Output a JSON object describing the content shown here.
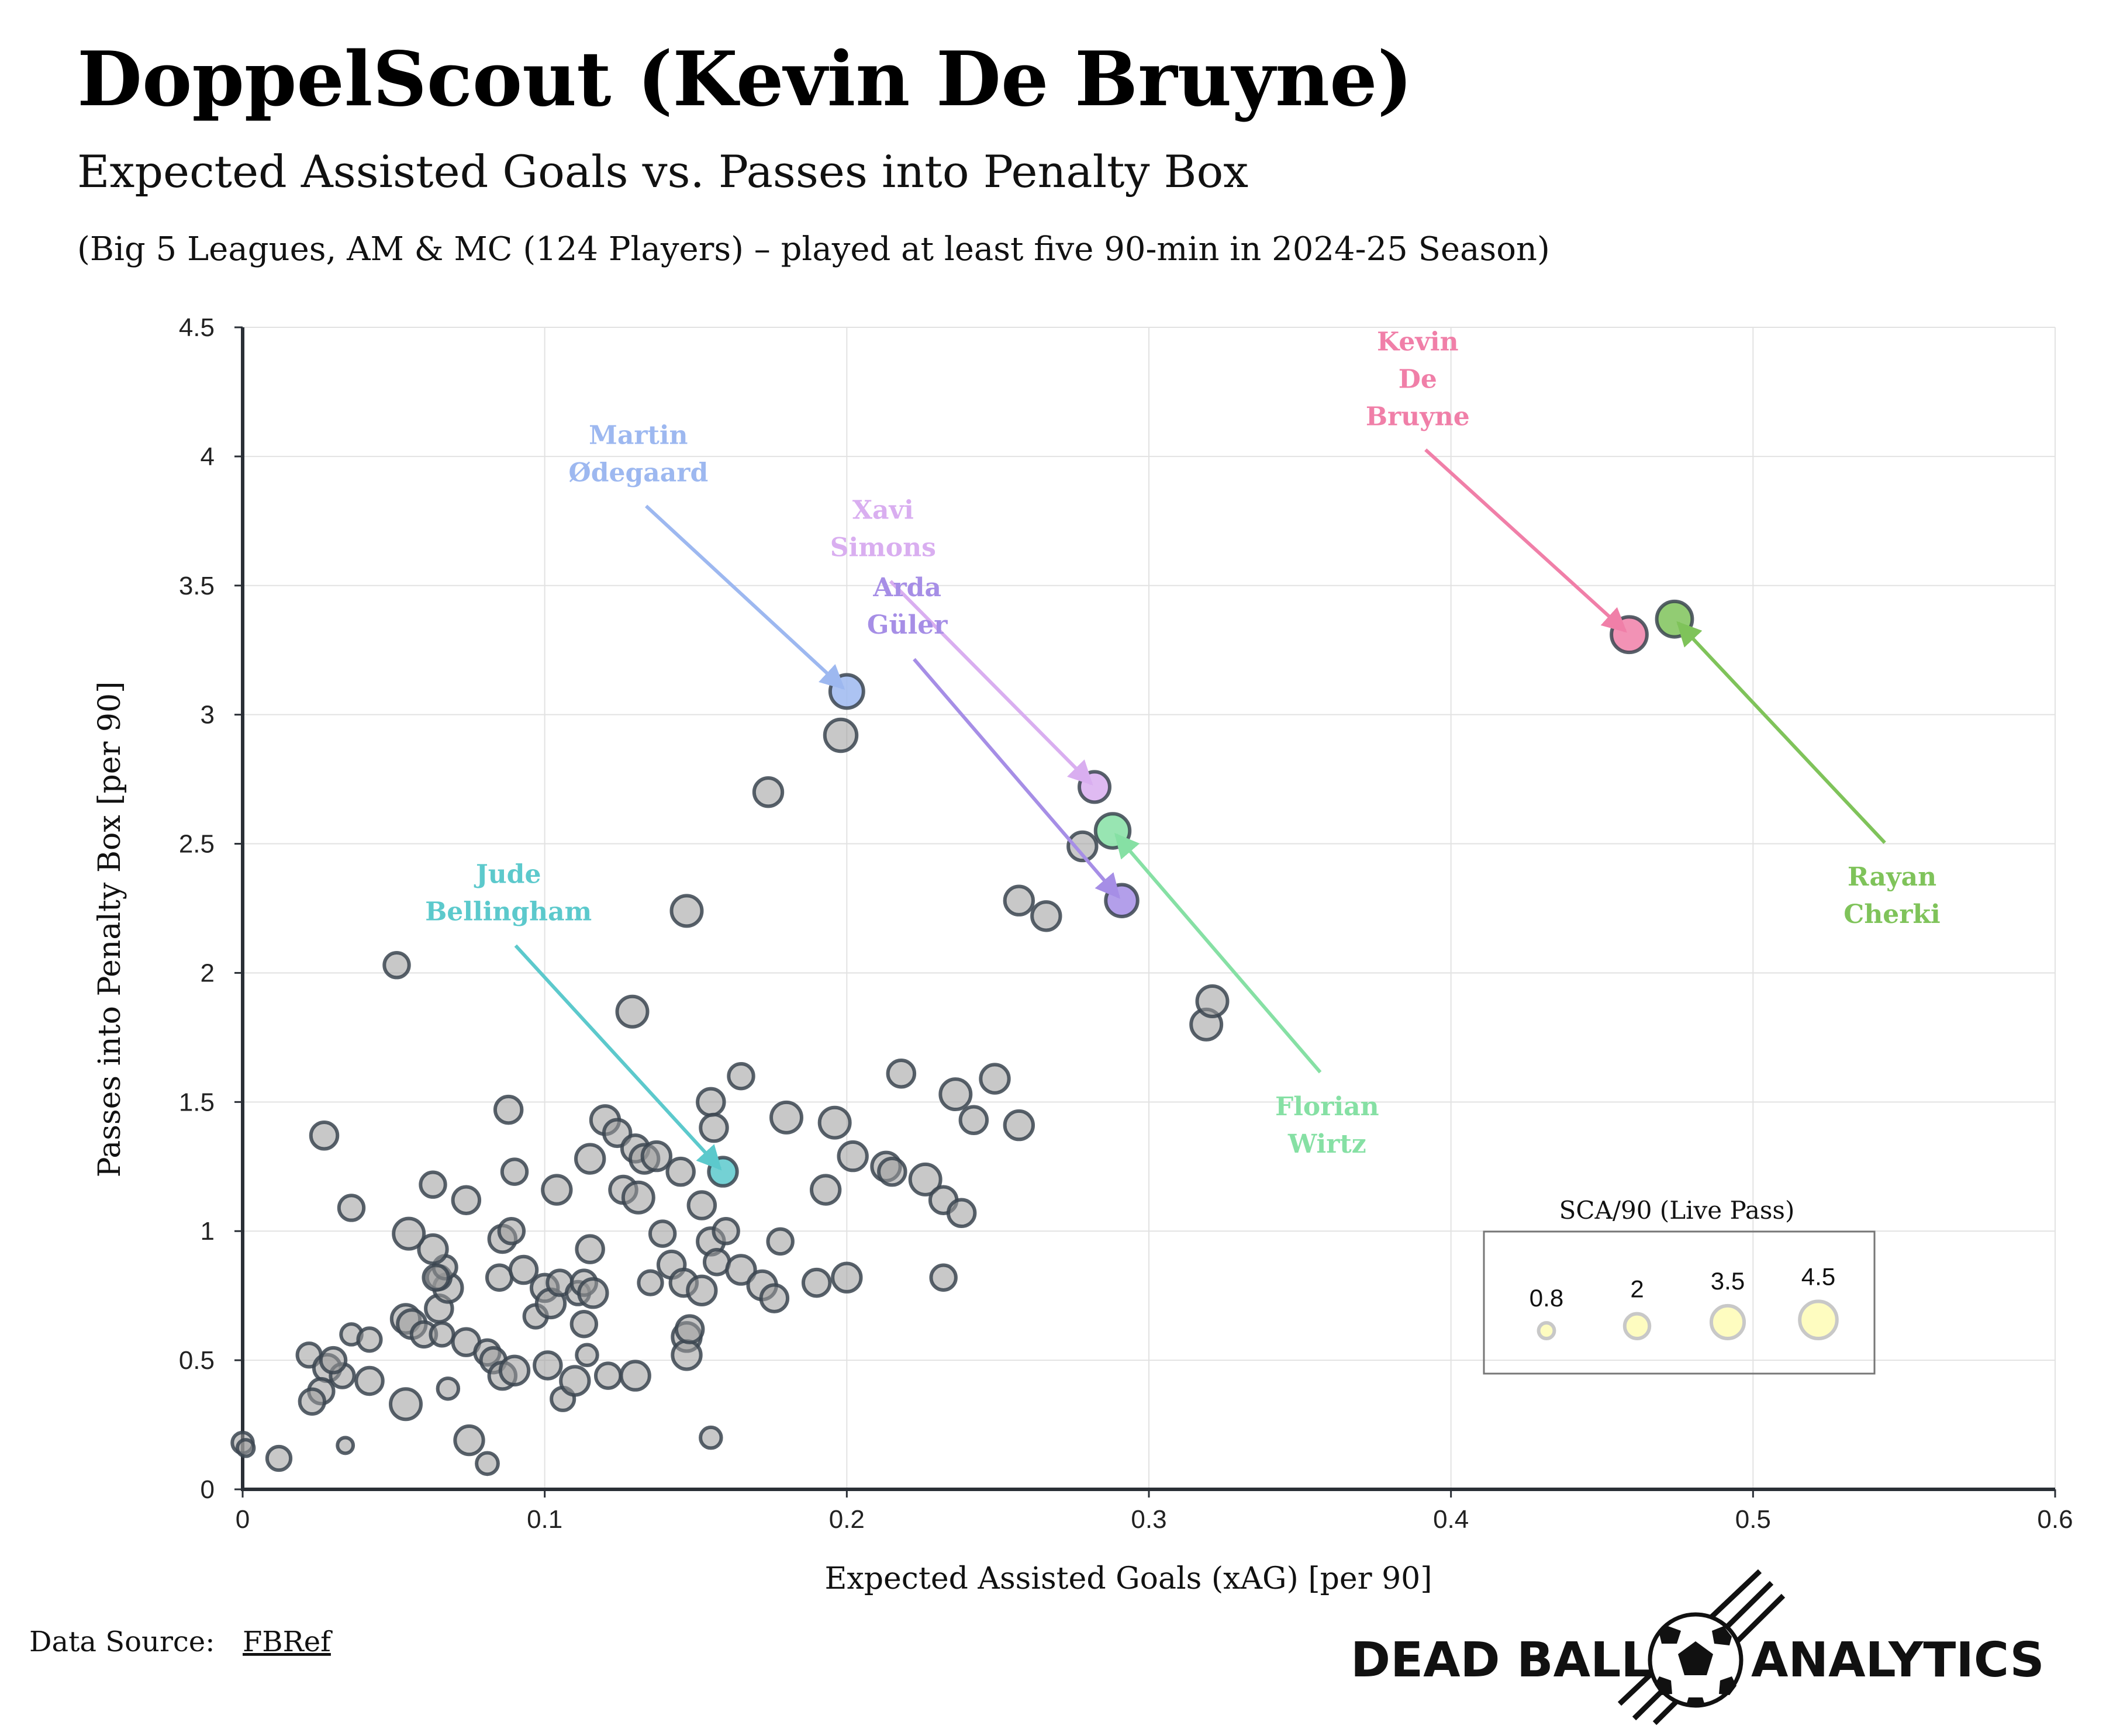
{
  "header": {
    "title": "DoppelScout (Kevin De Bruyne)",
    "subtitle": "Expected Assisted Goals vs. Passes into Penalty Box",
    "note": "(Big 5 Leagues, AM & MC (124 Players) – played at least five 90-min in 2024-25 Season)"
  },
  "footer": {
    "source_label": "Data Source:",
    "source_link": "FBRef",
    "brand_left": "DEAD BALL",
    "brand_right": "ANALYTICS"
  },
  "colors": {
    "point": "#9a9a9a",
    "point_stroke": "#3b4550",
    "kevin": "#f07fa8",
    "cherki": "#7fc35a",
    "odegaard": "#9db8f0",
    "simons": "#d9aef0",
    "guler": "#a68ee6",
    "wirtz": "#86e0a4",
    "bellingham": "#5cc9cc",
    "legend_fill": "#fefcc0"
  },
  "chart_data": {
    "type": "scatter",
    "xlabel": "Expected Assisted Goals (xAG) [per 90]",
    "ylabel": "Passes into Penalty Box [per 90]",
    "xlim": [
      0,
      0.6
    ],
    "ylim": [
      0,
      4.5
    ],
    "xticks": [
      "0",
      "0.1",
      "0.2",
      "0.3",
      "0.4",
      "0.5",
      "0.6"
    ],
    "yticks": [
      "0",
      "0.5",
      "1",
      "1.5",
      "2",
      "2.5",
      "3",
      "3.5",
      "4",
      "4.5"
    ],
    "grid": true,
    "size_legend": {
      "title": "SCA/90 (Live Pass)",
      "placement": "bottom-right",
      "values": [
        "0.8",
        "2",
        "3.5",
        "4.5"
      ]
    },
    "highlighted": [
      {
        "name": "Kevin De Bruyne",
        "label": [
          "Kevin",
          "De",
          "Bruyne"
        ],
        "x": 0.459,
        "y": 3.31,
        "size": 4.1,
        "color": "kevin",
        "label_x": 0.389,
        "label_y": 4.3
      },
      {
        "name": "Rayan Cherki",
        "label": [
          "Rayan",
          "Cherki"
        ],
        "x": 0.474,
        "y": 3.37,
        "size": 4.1,
        "color": "cherki",
        "label_x": 0.546,
        "label_y": 2.3
      },
      {
        "name": "Martin Ødegaard",
        "label": [
          "Martin",
          "Ødegaard"
        ],
        "x": 0.2,
        "y": 3.09,
        "size": 3.6,
        "color": "odegaard",
        "label_x": 0.131,
        "label_y": 4.01
      },
      {
        "name": "Xavi Simons",
        "label": [
          "Xavi",
          "Simons"
        ],
        "x": 0.282,
        "y": 2.72,
        "size": 3.0,
        "color": "simons",
        "label_x": 0.212,
        "label_y": 3.72
      },
      {
        "name": "Arda Güler",
        "label": [
          "Arda",
          "Güler"
        ],
        "x": 0.291,
        "y": 2.28,
        "size": 3.3,
        "color": "guler",
        "label_x": 0.22,
        "label_y": 3.42
      },
      {
        "name": "Florian Wirtz",
        "label": [
          "Florian",
          "Wirtz"
        ],
        "x": 0.288,
        "y": 2.55,
        "size": 3.8,
        "color": "wirtz",
        "label_x": 0.359,
        "label_y": 1.41
      },
      {
        "name": "Jude Bellingham",
        "label": [
          "Jude",
          "Bellingham"
        ],
        "x": 0.159,
        "y": 1.23,
        "size": 2.6,
        "color": "bellingham",
        "label_x": 0.088,
        "label_y": 2.31
      }
    ],
    "points": [
      [
        0.0,
        0.18,
        1.4
      ],
      [
        0.001,
        0.16,
        0.9
      ],
      [
        0.012,
        0.12,
        1.8
      ],
      [
        0.034,
        0.17,
        0.8
      ],
      [
        0.081,
        0.1,
        1.5
      ],
      [
        0.075,
        0.19,
        2.6
      ],
      [
        0.155,
        0.2,
        1.4
      ],
      [
        0.022,
        0.52,
        1.8
      ],
      [
        0.028,
        0.47,
        2.3
      ],
      [
        0.026,
        0.38,
        2.0
      ],
      [
        0.023,
        0.34,
        2.0
      ],
      [
        0.033,
        0.44,
        1.8
      ],
      [
        0.03,
        0.5,
        2.0
      ],
      [
        0.036,
        0.6,
        1.4
      ],
      [
        0.042,
        0.58,
        1.7
      ],
      [
        0.042,
        0.42,
        2.3
      ],
      [
        0.054,
        0.66,
        2.6
      ],
      [
        0.056,
        0.64,
        2.6
      ],
      [
        0.054,
        0.33,
        3.0
      ],
      [
        0.06,
        0.6,
        2.0
      ],
      [
        0.066,
        0.6,
        1.7
      ],
      [
        0.065,
        0.7,
        2.3
      ],
      [
        0.068,
        0.78,
        2.6
      ],
      [
        0.065,
        0.82,
        1.8
      ],
      [
        0.067,
        0.86,
        1.7
      ],
      [
        0.063,
        0.93,
        2.6
      ],
      [
        0.055,
        0.99,
        3.0
      ],
      [
        0.064,
        0.82,
        2.0
      ],
      [
        0.068,
        0.39,
        1.4
      ],
      [
        0.074,
        0.57,
        2.3
      ],
      [
        0.081,
        0.53,
        2.0
      ],
      [
        0.083,
        0.5,
        2.0
      ],
      [
        0.086,
        0.44,
        2.3
      ],
      [
        0.085,
        0.82,
        2.0
      ],
      [
        0.086,
        0.97,
        2.3
      ],
      [
        0.089,
        1.0,
        2.0
      ],
      [
        0.09,
        0.46,
        2.6
      ],
      [
        0.093,
        0.85,
        2.3
      ],
      [
        0.097,
        0.67,
        1.7
      ],
      [
        0.1,
        0.78,
        2.3
      ],
      [
        0.101,
        0.48,
        2.3
      ],
      [
        0.102,
        0.72,
        2.6
      ],
      [
        0.105,
        0.8,
        2.0
      ],
      [
        0.106,
        0.35,
        1.7
      ],
      [
        0.11,
        0.42,
        2.6
      ],
      [
        0.111,
        0.76,
        1.7
      ],
      [
        0.113,
        0.8,
        2.0
      ],
      [
        0.114,
        0.52,
        1.4
      ],
      [
        0.113,
        0.64,
        2.0
      ],
      [
        0.115,
        0.93,
        2.3
      ],
      [
        0.116,
        0.76,
        2.6
      ],
      [
        0.121,
        0.44,
        2.0
      ],
      [
        0.13,
        0.44,
        2.6
      ],
      [
        0.135,
        0.8,
        1.8
      ],
      [
        0.139,
        0.99,
        2.0
      ],
      [
        0.142,
        0.87,
        2.3
      ],
      [
        0.147,
        0.59,
        2.6
      ],
      [
        0.147,
        0.52,
        2.6
      ],
      [
        0.148,
        0.62,
        2.3
      ],
      [
        0.146,
        0.8,
        2.3
      ],
      [
        0.152,
        0.77,
        2.6
      ],
      [
        0.155,
        0.96,
        2.3
      ],
      [
        0.157,
        0.88,
        2.0
      ],
      [
        0.16,
        1.0,
        2.0
      ],
      [
        0.165,
        0.85,
        2.6
      ],
      [
        0.172,
        0.79,
        2.6
      ],
      [
        0.176,
        0.74,
        2.3
      ],
      [
        0.178,
        0.96,
        2.0
      ],
      [
        0.19,
        0.8,
        2.3
      ],
      [
        0.2,
        0.82,
        2.6
      ],
      [
        0.232,
        0.82,
        2.0
      ],
      [
        0.027,
        1.37,
        2.3
      ],
      [
        0.036,
        1.09,
        2.0
      ],
      [
        0.063,
        1.18,
        2.0
      ],
      [
        0.074,
        1.12,
        2.3
      ],
      [
        0.09,
        1.23,
        2.0
      ],
      [
        0.104,
        1.16,
        2.6
      ],
      [
        0.088,
        1.47,
        2.3
      ],
      [
        0.115,
        1.28,
        2.6
      ],
      [
        0.12,
        1.43,
        2.6
      ],
      [
        0.124,
        1.38,
        2.3
      ],
      [
        0.13,
        1.32,
        2.3
      ],
      [
        0.133,
        1.28,
        2.6
      ],
      [
        0.137,
        1.29,
        2.6
      ],
      [
        0.126,
        1.16,
        2.3
      ],
      [
        0.131,
        1.13,
        3.0
      ],
      [
        0.145,
        1.23,
        2.3
      ],
      [
        0.155,
        1.5,
        2.3
      ],
      [
        0.156,
        1.4,
        2.3
      ],
      [
        0.152,
        1.1,
        2.3
      ],
      [
        0.165,
        1.6,
        2.0
      ],
      [
        0.18,
        1.44,
        3.0
      ],
      [
        0.196,
        1.42,
        3.0
      ],
      [
        0.193,
        1.16,
        2.6
      ],
      [
        0.202,
        1.29,
        2.6
      ],
      [
        0.213,
        1.25,
        2.6
      ],
      [
        0.215,
        1.23,
        2.3
      ],
      [
        0.218,
        1.61,
        2.3
      ],
      [
        0.226,
        1.2,
        3.0
      ],
      [
        0.232,
        1.12,
        2.3
      ],
      [
        0.238,
        1.07,
        2.3
      ],
      [
        0.236,
        1.53,
        3.0
      ],
      [
        0.242,
        1.43,
        2.3
      ],
      [
        0.249,
        1.59,
        2.6
      ],
      [
        0.257,
        1.41,
        2.6
      ],
      [
        0.051,
        2.03,
        2.0
      ],
      [
        0.129,
        1.85,
        3.0
      ],
      [
        0.147,
        2.24,
        3.0
      ],
      [
        0.174,
        2.7,
        2.6
      ],
      [
        0.198,
        2.92,
        3.3
      ],
      [
        0.257,
        2.28,
        2.6
      ],
      [
        0.266,
        2.22,
        2.6
      ],
      [
        0.278,
        2.49,
        2.6
      ],
      [
        0.319,
        1.8,
        3.0
      ],
      [
        0.321,
        1.89,
        3.0
      ]
    ]
  }
}
